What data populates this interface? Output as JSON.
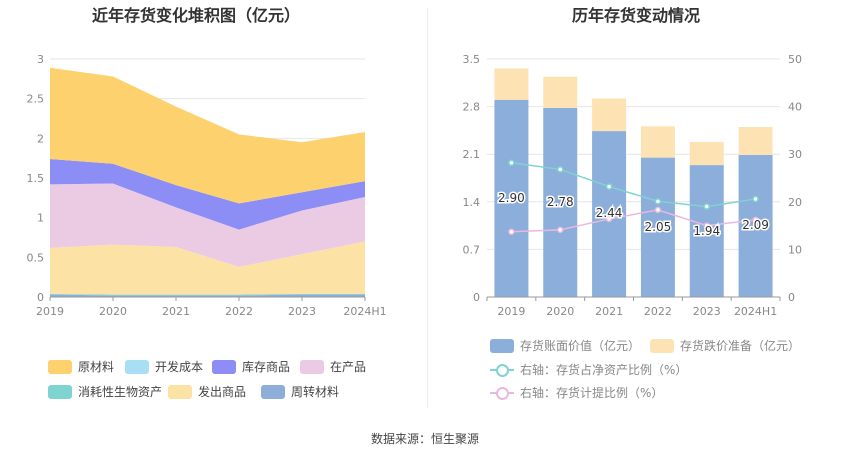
{
  "left_chart": {
    "title": "近年存货变化堆积图（亿元）"
  },
  "right_chart": {
    "title": "历年存货变动情况"
  },
  "source": "数据来源：恒生聚源",
  "chart_data": [
    {
      "type": "area",
      "stacked": true,
      "title": "近年存货变化堆积图（亿元）",
      "categories": [
        "2019",
        "2020",
        "2021",
        "2022",
        "2023",
        "2024H1"
      ],
      "ylim": [
        0,
        3
      ],
      "yticks": [
        "0",
        "0.5",
        "1",
        "1.5",
        "2",
        "2.5",
        "3"
      ],
      "grid": true,
      "legend_position": "bottom",
      "series": [
        {
          "name": "周转材料",
          "color": "#8fadd9",
          "values": [
            0.03,
            0.02,
            0.02,
            0.02,
            0.03,
            0.03
          ]
        },
        {
          "name": "消耗性生物资产",
          "color": "#7fd3d0",
          "values": [
            0.01,
            0.01,
            0.01,
            0.01,
            0.01,
            0.01
          ]
        },
        {
          "name": "发出商品",
          "color": "#fde2a6",
          "values": [
            0.58,
            0.63,
            0.6,
            0.35,
            0.5,
            0.66
          ]
        },
        {
          "name": "在产品",
          "color": "#ebcbe3",
          "values": [
            0.8,
            0.77,
            0.5,
            0.47,
            0.55,
            0.56
          ]
        },
        {
          "name": "库存商品",
          "color": "#8d8ef5",
          "values": [
            0.32,
            0.25,
            0.28,
            0.33,
            0.23,
            0.2
          ]
        },
        {
          "name": "开发成本",
          "color": "#a9def5",
          "values": [
            0,
            0,
            0,
            0,
            0,
            0
          ]
        },
        {
          "name": "原材料",
          "color": "#fdd26e",
          "values": [
            1.15,
            1.1,
            0.99,
            0.87,
            0.63,
            0.62
          ]
        }
      ],
      "legend_order": [
        "原材料",
        "开发成本",
        "库存商品",
        "在产品",
        "消耗性生物资产",
        "发出商品",
        "周转材料"
      ]
    },
    {
      "type": "bar",
      "stacked": true,
      "title": "历年存货变动情况",
      "categories": [
        "2019",
        "2020",
        "2021",
        "2022",
        "2023",
        "2024H1"
      ],
      "ylim": [
        0,
        3.5
      ],
      "yticks": [
        "0",
        "0.7",
        "1.4",
        "2.1",
        "2.8",
        "3.5"
      ],
      "y2lim": [
        0,
        50
      ],
      "y2ticks": [
        "0",
        "10",
        "20",
        "30",
        "40",
        "50"
      ],
      "grid": true,
      "legend_position": "bottom",
      "series": [
        {
          "name": "存货账面价值（亿元）",
          "color": "#8caedb",
          "values": [
            2.9,
            2.78,
            2.44,
            2.05,
            1.94,
            2.09
          ],
          "labels": [
            "2.90",
            "2.78",
            "2.44",
            "2.05",
            "1.94",
            "2.09"
          ]
        },
        {
          "name": "存货跌价准备（亿元）",
          "color": "#fde2b4",
          "values": [
            0.46,
            0.46,
            0.48,
            0.46,
            0.34,
            0.41
          ]
        }
      ],
      "line_series": [
        {
          "name": "右轴：存货占净资产比例（%）",
          "color": "#7fd3d0",
          "axis": "right",
          "values": [
            28.2,
            26.8,
            23.2,
            20.1,
            19.0,
            20.6
          ]
        },
        {
          "name": "右轴：存货计提比例（%）",
          "color": "#eab8de",
          "axis": "right",
          "values": [
            13.7,
            14.1,
            16.4,
            18.3,
            15.0,
            16.2
          ]
        }
      ]
    }
  ]
}
